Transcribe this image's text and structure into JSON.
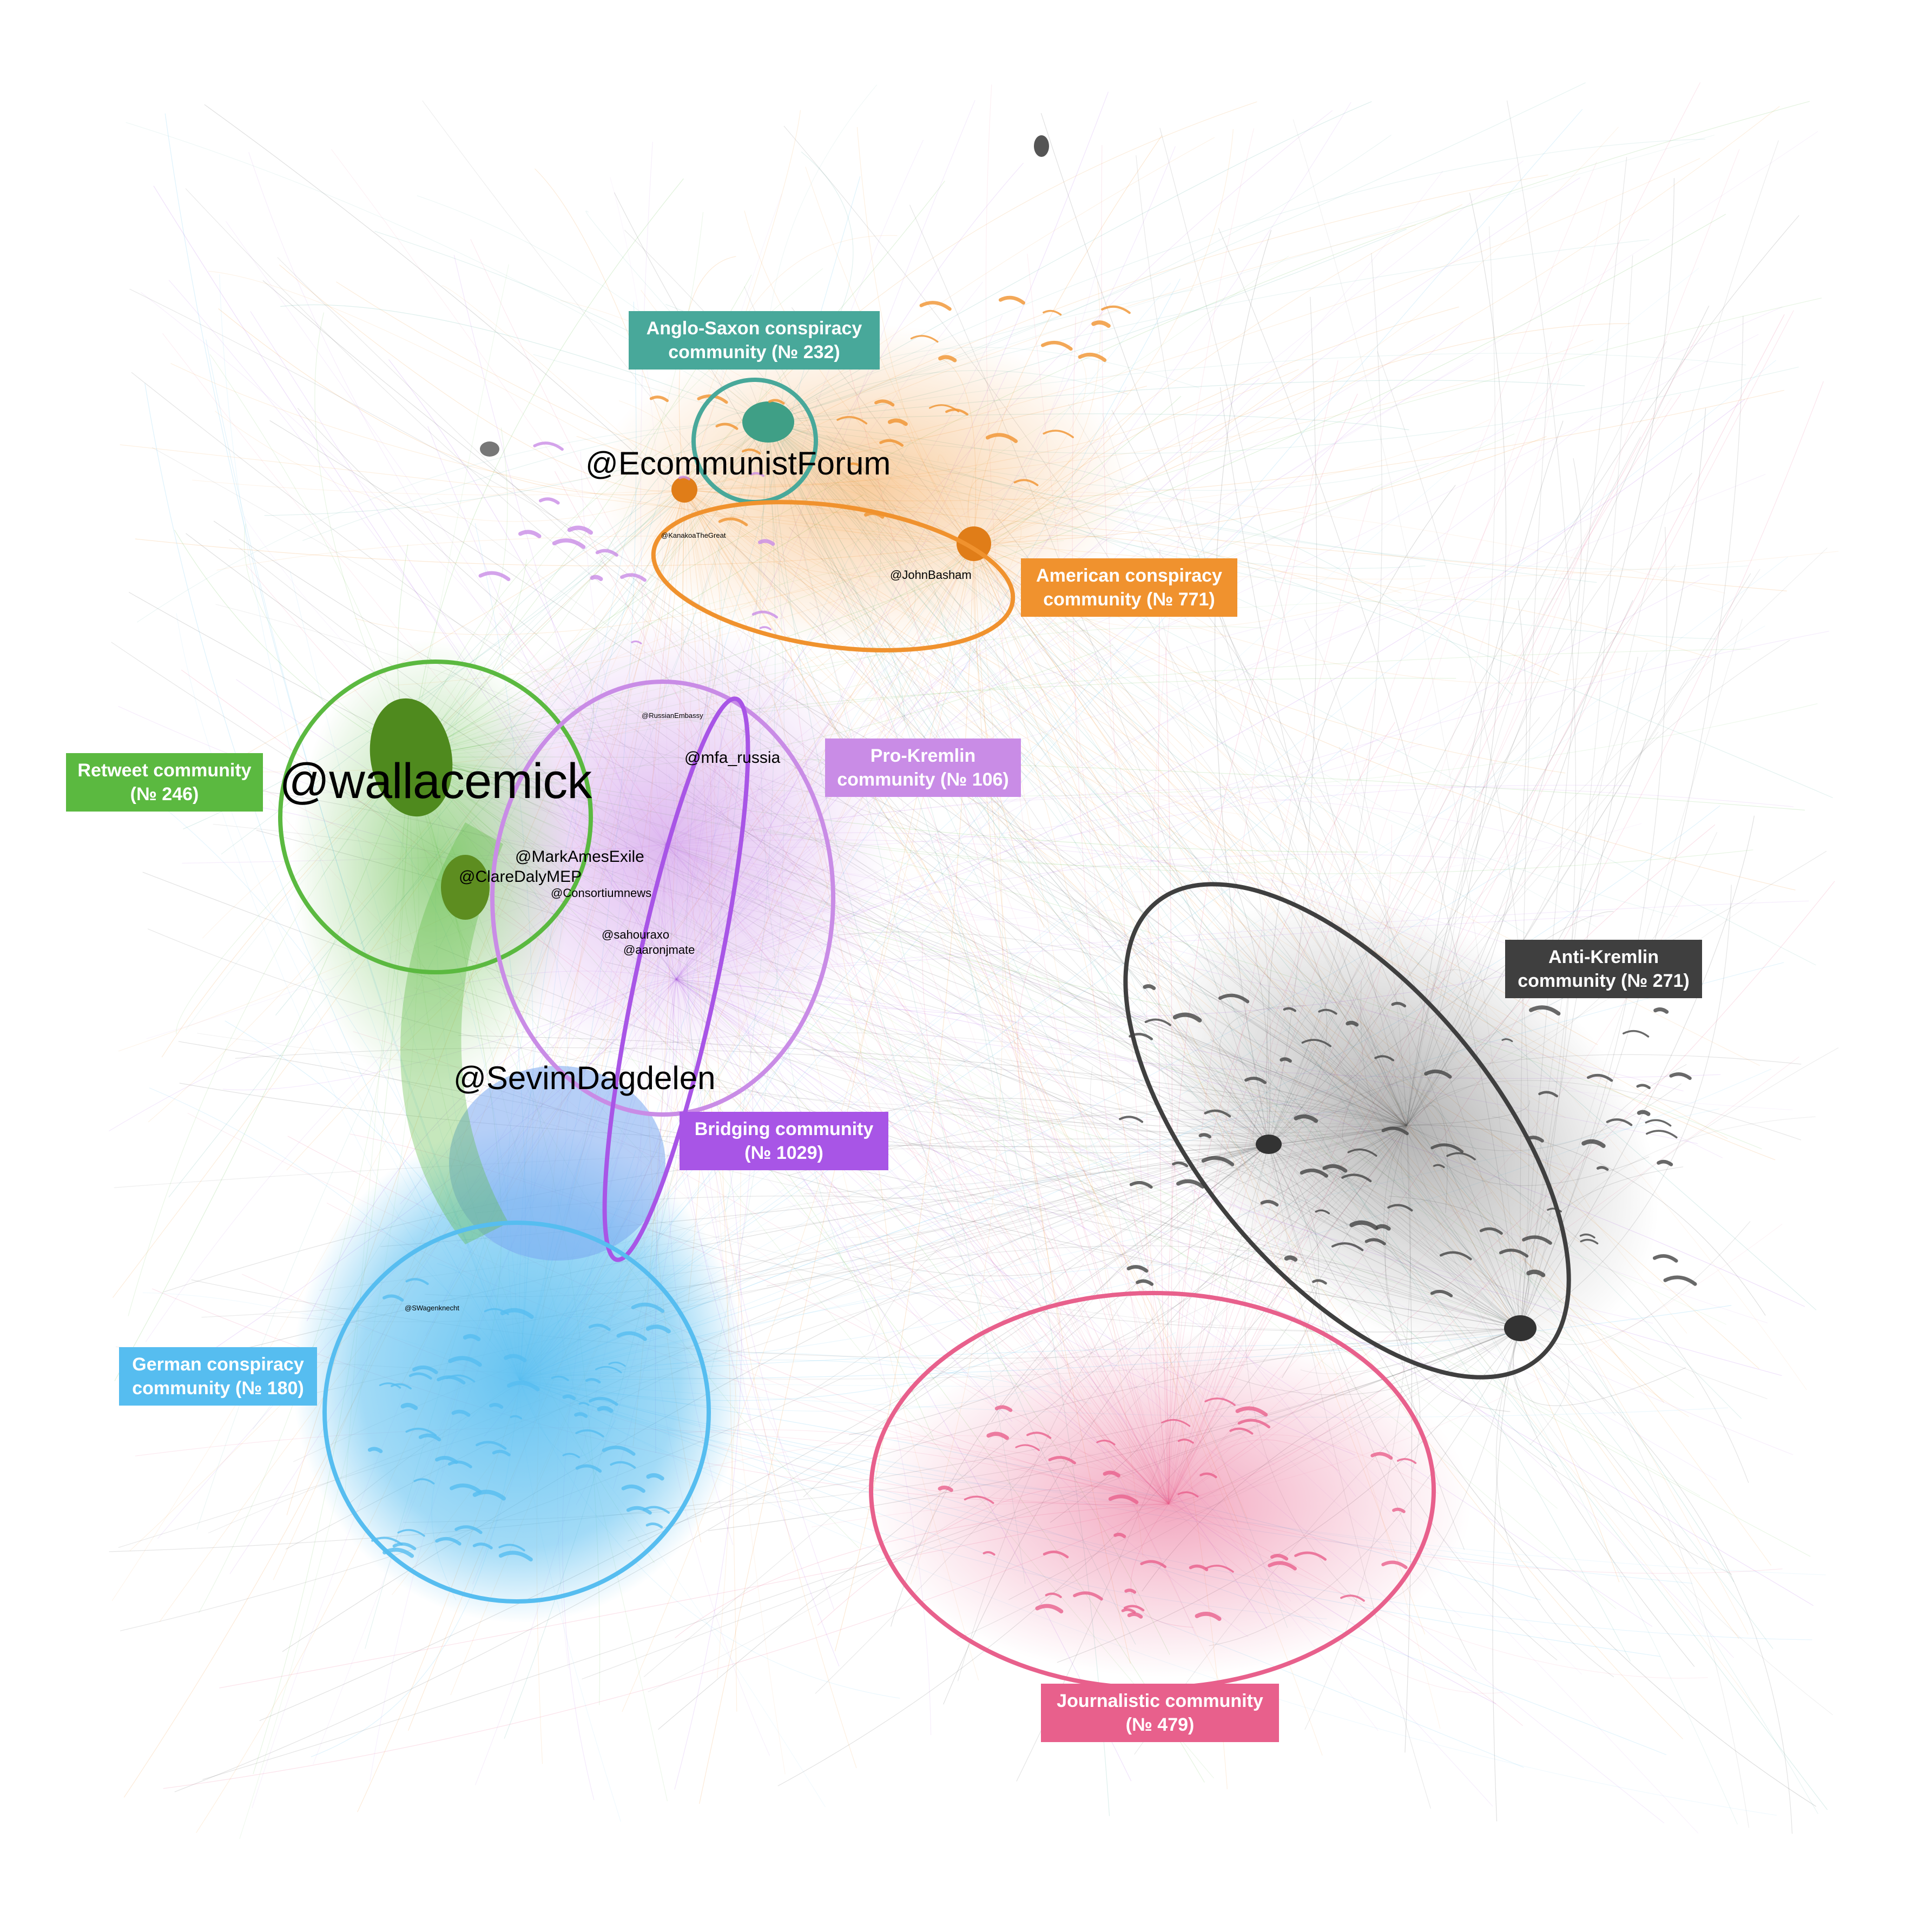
{
  "colors": {
    "anglo": "#48a89a",
    "american": "#f0922e",
    "retweet": "#5bb940",
    "prokremlin": "#c98ce6",
    "bridging": "#a855e6",
    "antikremlin": "#3f3f3f",
    "german": "#56bdf0",
    "journalistic": "#e8608c"
  },
  "communities": {
    "anglo": {
      "line1": "Anglo-Saxon conspiracy",
      "line2": "community (№ 232)"
    },
    "american": {
      "line1": "American conspiracy",
      "line2": "community (№ 771)"
    },
    "retweet": {
      "line1": "Retweet community",
      "line2": "(№ 246)"
    },
    "prokremlin": {
      "line1": "Pro-Kremlin",
      "line2": "community (№ 106)"
    },
    "bridging": {
      "line1": "Bridging community",
      "line2": "(№ 1029)"
    },
    "antikremlin": {
      "line1": "Anti-Kremlin",
      "line2": "community (№ 271)"
    },
    "german": {
      "line1": "German conspiracy",
      "line2": "community (№ 180)"
    },
    "journalistic": {
      "line1": "Journalistic community",
      "line2": "(№ 479)"
    }
  },
  "handles": {
    "ecommunist": "@EcommunistForum",
    "wallacemick": "@wallacemick",
    "sevim": "@SevimDagdelen",
    "johnbasham": "@JohnBasham",
    "kanakoa": "@KanakoaTheGreat",
    "russiaembassy": "@RussianEmbassy",
    "mfarussia": "@mfa_russia",
    "markames": "@MarkAmesExile",
    "claredaly": "@ClareDalyMEP",
    "consortium": "@Consortiumnews",
    "sahouraxo": "@sahouraxo",
    "aaronjmate": "@aaronjmate",
    "swagenknecht": "@SWagenknecht"
  }
}
